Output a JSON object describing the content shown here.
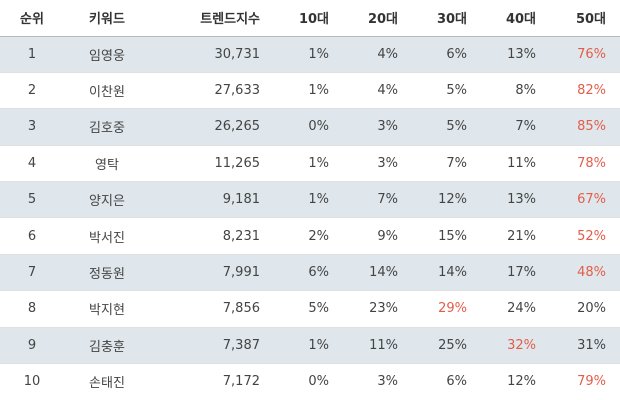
{
  "table": {
    "headers": [
      "순위",
      "키워드",
      "트렌드지수",
      "10대",
      "20대",
      "30대",
      "40대",
      "50대"
    ],
    "highlight_color": "#e35d4a",
    "stripe_color": "#dfe7ec",
    "rows": [
      {
        "rank": "1",
        "keyword": "임영웅",
        "trend": "30,731",
        "a10": "1%",
        "a20": "4%",
        "a30": "6%",
        "a40": "13%",
        "a50": "76%",
        "highlight": "a50"
      },
      {
        "rank": "2",
        "keyword": "이찬원",
        "trend": "27,633",
        "a10": "1%",
        "a20": "4%",
        "a30": "5%",
        "a40": "8%",
        "a50": "82%",
        "highlight": "a50"
      },
      {
        "rank": "3",
        "keyword": "김호중",
        "trend": "26,265",
        "a10": "0%",
        "a20": "3%",
        "a30": "5%",
        "a40": "7%",
        "a50": "85%",
        "highlight": "a50"
      },
      {
        "rank": "4",
        "keyword": "영탁",
        "trend": "11,265",
        "a10": "1%",
        "a20": "3%",
        "a30": "7%",
        "a40": "11%",
        "a50": "78%",
        "highlight": "a50"
      },
      {
        "rank": "5",
        "keyword": "양지은",
        "trend": "9,181",
        "a10": "1%",
        "a20": "7%",
        "a30": "12%",
        "a40": "13%",
        "a50": "67%",
        "highlight": "a50"
      },
      {
        "rank": "6",
        "keyword": "박서진",
        "trend": "8,231",
        "a10": "2%",
        "a20": "9%",
        "a30": "15%",
        "a40": "21%",
        "a50": "52%",
        "highlight": "a50"
      },
      {
        "rank": "7",
        "keyword": "정동원",
        "trend": "7,991",
        "a10": "6%",
        "a20": "14%",
        "a30": "14%",
        "a40": "17%",
        "a50": "48%",
        "highlight": "a50"
      },
      {
        "rank": "8",
        "keyword": "박지현",
        "trend": "7,856",
        "a10": "5%",
        "a20": "23%",
        "a30": "29%",
        "a40": "24%",
        "a50": "20%",
        "highlight": "a30"
      },
      {
        "rank": "9",
        "keyword": "김충훈",
        "trend": "7,387",
        "a10": "1%",
        "a20": "11%",
        "a30": "25%",
        "a40": "32%",
        "a50": "31%",
        "highlight": "a40"
      },
      {
        "rank": "10",
        "keyword": "손태진",
        "trend": "7,172",
        "a10": "0%",
        "a20": "3%",
        "a30": "6%",
        "a40": "12%",
        "a50": "79%",
        "highlight": "a50"
      }
    ]
  }
}
